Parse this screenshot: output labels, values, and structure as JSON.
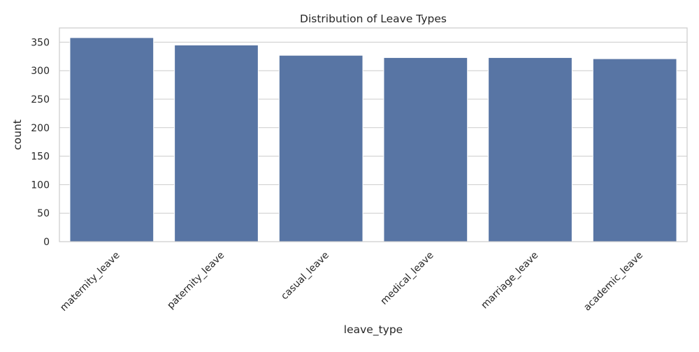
{
  "chart_data": {
    "type": "bar",
    "title": "Distribution of Leave Types",
    "xlabel": "leave_type",
    "ylabel": "count",
    "categories": [
      "maternity_leave",
      "paternity_leave",
      "casual_leave",
      "medical_leave",
      "marriage_leave",
      "academic_leave"
    ],
    "values": [
      358,
      345,
      327,
      323,
      323,
      321
    ],
    "ylim": [
      0,
      375
    ],
    "yticks": [
      0,
      50,
      100,
      150,
      200,
      250,
      300,
      350
    ],
    "grid": "horizontal",
    "bar_color": "#5875a4"
  }
}
